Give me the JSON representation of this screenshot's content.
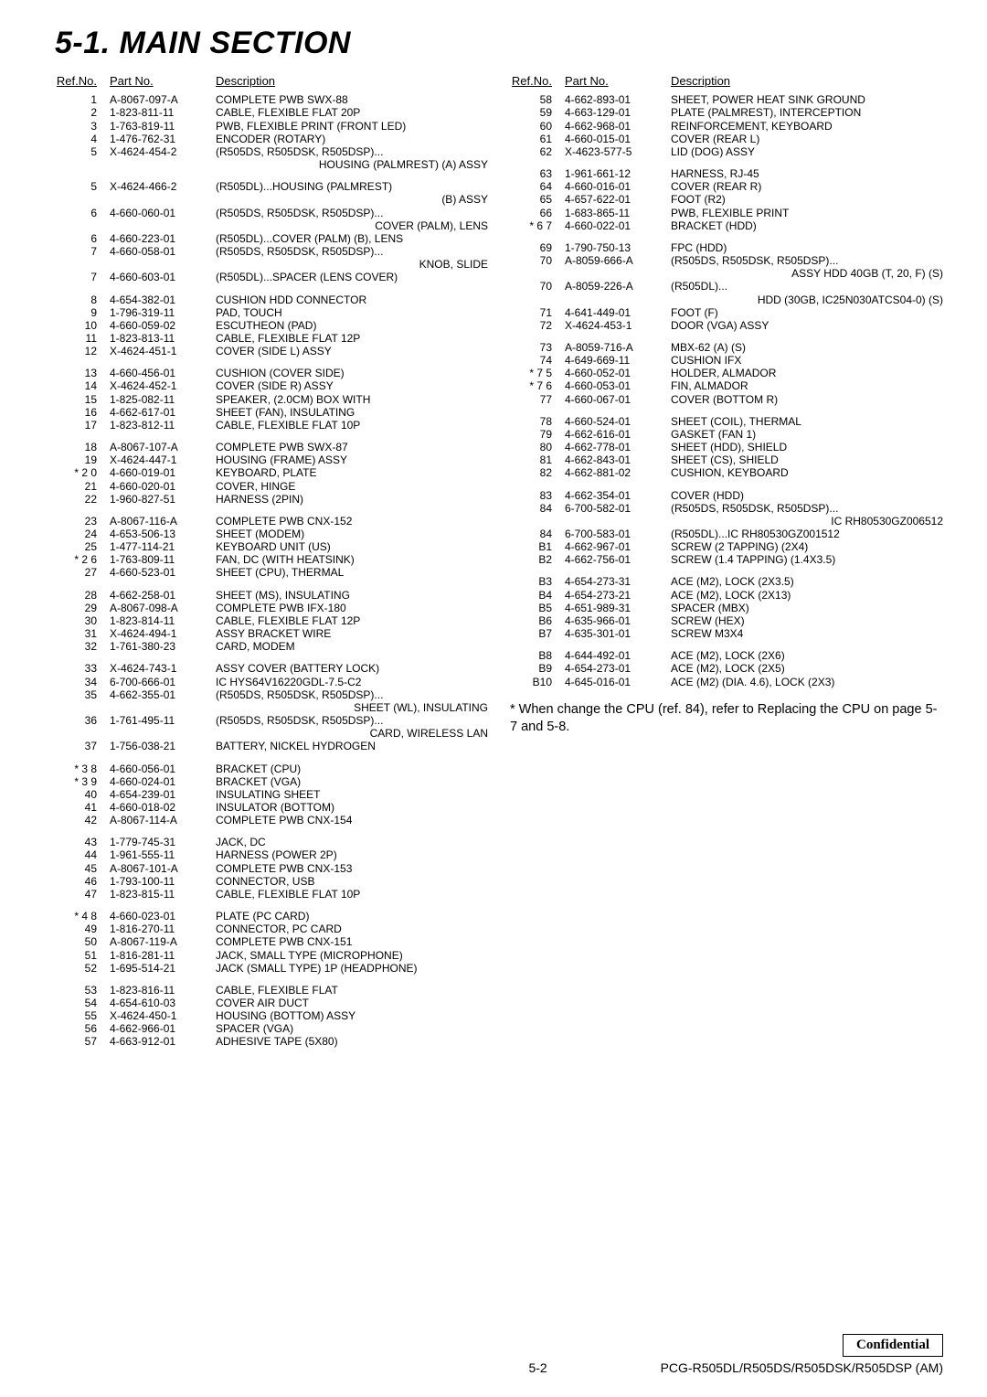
{
  "title": "5-1. MAIN SECTION",
  "headers": {
    "ref": "Ref.No.",
    "pn": "Part No.",
    "desc": "Description"
  },
  "note": "* When change the CPU (ref. 84), refer to  Replacing the CPU on page 5-7 and 5-8.",
  "footer": {
    "confidential": "Confidential",
    "page": "5-2",
    "model": "PCG-R505DL/R505DS/R505DSK/R505DSP (AM)"
  },
  "left": [
    {
      "g": [
        {
          "r": "1",
          "p": "A-8067-097-A",
          "d": "COMPLETE PWB SWX-88"
        },
        {
          "r": "2",
          "p": "1-823-811-11",
          "d": "CABLE, FLEXIBLE FLAT 20P"
        },
        {
          "r": "3",
          "p": "1-763-819-11",
          "d": "PWB, FLEXIBLE PRINT (FRONT LED)"
        },
        {
          "r": "4",
          "p": "1-476-762-31",
          "d": "ENCODER (ROTARY)"
        },
        {
          "r": "5",
          "p": "X-4624-454-2",
          "d": "(R505DS, R505DSK, R505DSP)...",
          "s": "HOUSING (PALMREST) (A) ASSY"
        }
      ]
    },
    {
      "g": [
        {
          "r": "5",
          "p": "X-4624-466-2",
          "d": "(R505DL)...HOUSING (PALMREST)",
          "s": "(B) ASSY"
        },
        {
          "r": "6",
          "p": "4-660-060-01",
          "d": "(R505DS, R505DSK, R505DSP)...",
          "s": "COVER (PALM), LENS"
        },
        {
          "r": "6",
          "p": "4-660-223-01",
          "d": "(R505DL)...COVER (PALM) (B), LENS"
        },
        {
          "r": "7",
          "p": "4-660-058-01",
          "d": "(R505DS, R505DSK, R505DSP)...",
          "s": "KNOB, SLIDE"
        },
        {
          "r": "7",
          "p": "4-660-603-01",
          "d": "(R505DL)...SPACER (LENS COVER)"
        }
      ]
    },
    {
      "g": [
        {
          "r": "8",
          "p": "4-654-382-01",
          "d": "CUSHION HDD CONNECTOR"
        },
        {
          "r": "9",
          "p": "1-796-319-11",
          "d": "PAD, TOUCH"
        },
        {
          "r": "10",
          "p": "4-660-059-02",
          "d": "ESCUTHEON (PAD)"
        },
        {
          "r": "11",
          "p": "1-823-813-11",
          "d": "CABLE, FLEXIBLE FLAT 12P"
        },
        {
          "r": "12",
          "p": "X-4624-451-1",
          "d": "COVER (SIDE L) ASSY"
        }
      ]
    },
    {
      "g": [
        {
          "r": "13",
          "p": "4-660-456-01",
          "d": "CUSHION (COVER SIDE)"
        },
        {
          "r": "14",
          "p": "X-4624-452-1",
          "d": "COVER (SIDE R) ASSY"
        },
        {
          "r": "15",
          "p": "1-825-082-11",
          "d": "SPEAKER, (2.0CM) BOX WITH"
        },
        {
          "r": "16",
          "p": "4-662-617-01",
          "d": "SHEET (FAN), INSULATING"
        },
        {
          "r": "17",
          "p": "1-823-812-11",
          "d": "CABLE, FLEXIBLE FLAT 10P"
        }
      ]
    },
    {
      "g": [
        {
          "r": "18",
          "p": "A-8067-107-A",
          "d": "COMPLETE PWB SWX-87"
        },
        {
          "r": "19",
          "p": "X-4624-447-1",
          "d": "HOUSING (FRAME) ASSY"
        },
        {
          "r": "* 2 0",
          "p": "4-660-019-01",
          "d": "KEYBOARD, PLATE"
        },
        {
          "r": "21",
          "p": "4-660-020-01",
          "d": "COVER, HINGE"
        },
        {
          "r": "22",
          "p": "1-960-827-51",
          "d": "HARNESS (2PIN)"
        }
      ]
    },
    {
      "g": [
        {
          "r": "23",
          "p": "A-8067-116-A",
          "d": "COMPLETE PWB CNX-152"
        },
        {
          "r": "24",
          "p": "4-653-506-13",
          "d": "SHEET (MODEM)"
        },
        {
          "r": "25",
          "p": "1-477-114-21",
          "d": "KEYBOARD UNIT (US)"
        },
        {
          "r": "* 2 6",
          "p": "1-763-809-11",
          "d": "FAN, DC (WITH HEATSINK)"
        },
        {
          "r": "27",
          "p": "4-660-523-01",
          "d": "SHEET (CPU), THERMAL"
        }
      ]
    },
    {
      "g": [
        {
          "r": "28",
          "p": "4-662-258-01",
          "d": "SHEET (MS), INSULATING"
        },
        {
          "r": "29",
          "p": "A-8067-098-A",
          "d": "COMPLETE PWB IFX-180"
        },
        {
          "r": "30",
          "p": "1-823-814-11",
          "d": "CABLE, FLEXIBLE FLAT 12P"
        },
        {
          "r": "31",
          "p": "X-4624-494-1",
          "d": "ASSY BRACKET WIRE"
        },
        {
          "r": "32",
          "p": "1-761-380-23",
          "d": "CARD, MODEM"
        }
      ]
    },
    {
      "g": [
        {
          "r": "33",
          "p": "X-4624-743-1",
          "d": "ASSY COVER (BATTERY LOCK)"
        },
        {
          "r": "34",
          "p": "6-700-666-01",
          "d": "IC HYS64V16220GDL-7.5-C2"
        },
        {
          "r": "35",
          "p": "4-662-355-01",
          "d": "(R505DS, R505DSK, R505DSP)...",
          "s": "SHEET (WL), INSULATING"
        },
        {
          "r": "36",
          "p": "1-761-495-11",
          "d": "(R505DS, R505DSK, R505DSP)...",
          "s": "CARD, WIRELESS LAN"
        },
        {
          "r": "37",
          "p": "1-756-038-21",
          "d": "BATTERY, NICKEL HYDROGEN"
        }
      ]
    },
    {
      "g": [
        {
          "r": "* 3 8",
          "p": "4-660-056-01",
          "d": "BRACKET (CPU)"
        },
        {
          "r": "* 3 9",
          "p": "4-660-024-01",
          "d": "BRACKET (VGA)"
        },
        {
          "r": "40",
          "p": "4-654-239-01",
          "d": "INSULATING SHEET"
        },
        {
          "r": "41",
          "p": "4-660-018-02",
          "d": "INSULATOR (BOTTOM)"
        },
        {
          "r": "42",
          "p": "A-8067-114-A",
          "d": "COMPLETE PWB CNX-154"
        }
      ]
    },
    {
      "g": [
        {
          "r": "43",
          "p": "1-779-745-31",
          "d": "JACK, DC"
        },
        {
          "r": "44",
          "p": "1-961-555-11",
          "d": "HARNESS (POWER 2P)"
        },
        {
          "r": "45",
          "p": "A-8067-101-A",
          "d": "COMPLETE PWB CNX-153"
        },
        {
          "r": "46",
          "p": "1-793-100-11",
          "d": "CONNECTOR, USB"
        },
        {
          "r": "47",
          "p": "1-823-815-11",
          "d": "CABLE, FLEXIBLE FLAT 10P"
        }
      ]
    },
    {
      "g": [
        {
          "r": "* 4 8",
          "p": "4-660-023-01",
          "d": "PLATE (PC CARD)"
        },
        {
          "r": "49",
          "p": "1-816-270-11",
          "d": "CONNECTOR, PC CARD"
        },
        {
          "r": "50",
          "p": "A-8067-119-A",
          "d": "COMPLETE PWB CNX-151"
        },
        {
          "r": "51",
          "p": "1-816-281-11",
          "d": "JACK, SMALL TYPE (MICROPHONE)"
        },
        {
          "r": "52",
          "p": "1-695-514-21",
          "d": "JACK (SMALL TYPE) 1P (HEADPHONE)"
        }
      ]
    },
    {
      "g": [
        {
          "r": "53",
          "p": "1-823-816-11",
          "d": "CABLE, FLEXIBLE FLAT"
        },
        {
          "r": "54",
          "p": "4-654-610-03",
          "d": "COVER AIR DUCT"
        },
        {
          "r": "55",
          "p": "X-4624-450-1",
          "d": "HOUSING (BOTTOM) ASSY"
        },
        {
          "r": "56",
          "p": "4-662-966-01",
          "d": "SPACER (VGA)"
        },
        {
          "r": "57",
          "p": "4-663-912-01",
          "d": "ADHESIVE TAPE (5X80)"
        }
      ]
    }
  ],
  "right": [
    {
      "g": [
        {
          "r": "58",
          "p": "4-662-893-01",
          "d": "SHEET, POWER HEAT SINK GROUND"
        },
        {
          "r": "59",
          "p": "4-663-129-01",
          "d": "PLATE (PALMREST), INTERCEPTION"
        },
        {
          "r": "60",
          "p": "4-662-968-01",
          "d": "REINFORCEMENT, KEYBOARD"
        },
        {
          "r": "61",
          "p": "4-660-015-01",
          "d": "COVER (REAR L)"
        },
        {
          "r": "62",
          "p": "X-4623-577-5",
          "d": "LID (DOG) ASSY"
        }
      ]
    },
    {
      "g": [
        {
          "r": "63",
          "p": "1-961-661-12",
          "d": "HARNESS, RJ-45"
        },
        {
          "r": "64",
          "p": "4-660-016-01",
          "d": "COVER (REAR R)"
        },
        {
          "r": "65",
          "p": "4-657-622-01",
          "d": "FOOT (R2)"
        },
        {
          "r": "66",
          "p": "1-683-865-11",
          "d": "PWB, FLEXIBLE PRINT"
        },
        {
          "r": "* 6 7",
          "p": "4-660-022-01",
          "d": "BRACKET (HDD)"
        }
      ]
    },
    {
      "g": [
        {
          "r": "69",
          "p": "1-790-750-13",
          "d": "FPC (HDD)"
        },
        {
          "r": "70",
          "p": "A-8059-666-A",
          "d": "(R505DS, R505DSK, R505DSP)...",
          "s": "ASSY HDD 40GB (T, 20, F) (S)"
        },
        {
          "r": "70",
          "p": "A-8059-226-A",
          "d": "(R505DL)...",
          "s": "HDD (30GB, IC25N030ATCS04-0) (S)"
        },
        {
          "r": "71",
          "p": "4-641-449-01",
          "d": "FOOT (F)"
        },
        {
          "r": "72",
          "p": "X-4624-453-1",
          "d": "DOOR (VGA) ASSY"
        }
      ]
    },
    {
      "g": [
        {
          "r": "73",
          "p": "A-8059-716-A",
          "d": "MBX-62 (A) (S)"
        },
        {
          "r": "74",
          "p": "4-649-669-11",
          "d": "CUSHION IFX"
        },
        {
          "r": "* 7 5",
          "p": "4-660-052-01",
          "d": "HOLDER, ALMADOR"
        },
        {
          "r": "* 7 6",
          "p": "4-660-053-01",
          "d": "FIN, ALMADOR"
        },
        {
          "r": "77",
          "p": "4-660-067-01",
          "d": "COVER (BOTTOM R)"
        }
      ]
    },
    {
      "g": [
        {
          "r": "78",
          "p": "4-660-524-01",
          "d": "SHEET (COIL), THERMAL"
        },
        {
          "r": "79",
          "p": "4-662-616-01",
          "d": "GASKET (FAN 1)"
        },
        {
          "r": "80",
          "p": "4-662-778-01",
          "d": "SHEET (HDD), SHIELD"
        },
        {
          "r": "81",
          "p": "4-662-843-01",
          "d": "SHEET (CS), SHIELD"
        },
        {
          "r": "82",
          "p": "4-662-881-02",
          "d": "CUSHION, KEYBOARD"
        }
      ]
    },
    {
      "g": [
        {
          "r": "83",
          "p": "4-662-354-01",
          "d": "COVER (HDD)"
        },
        {
          "r": "84",
          "p": "6-700-582-01",
          "d": "(R505DS, R505DSK, R505DSP)...",
          "s": "IC RH80530GZ006512"
        },
        {
          "r": "84",
          "p": "6-700-583-01",
          "d": "(R505DL)...IC RH80530GZ001512"
        },
        {
          "r": "B1",
          "p": "4-662-967-01",
          "d": "SCREW (2 TAPPING) (2X4)"
        },
        {
          "r": "B2",
          "p": "4-662-756-01",
          "d": "SCREW (1.4 TAPPING) (1.4X3.5)"
        }
      ]
    },
    {
      "g": [
        {
          "r": "B3",
          "p": "4-654-273-31",
          "d": "ACE (M2), LOCK (2X3.5)"
        },
        {
          "r": "B4",
          "p": "4-654-273-21",
          "d": "ACE (M2), LOCK (2X13)"
        },
        {
          "r": "B5",
          "p": "4-651-989-31",
          "d": "SPACER (MBX)"
        },
        {
          "r": "B6",
          "p": "4-635-966-01",
          "d": "SCREW (HEX)"
        },
        {
          "r": "B7",
          "p": "4-635-301-01",
          "d": "SCREW M3X4"
        }
      ]
    },
    {
      "g": [
        {
          "r": "B8",
          "p": "4-644-492-01",
          "d": "ACE (M2), LOCK (2X6)"
        },
        {
          "r": "B9",
          "p": "4-654-273-01",
          "d": "ACE (M2), LOCK (2X5)"
        },
        {
          "r": "B10",
          "p": "4-645-016-01",
          "d": "ACE (M2) (DIA. 4.6), LOCK (2X3)"
        }
      ]
    }
  ]
}
